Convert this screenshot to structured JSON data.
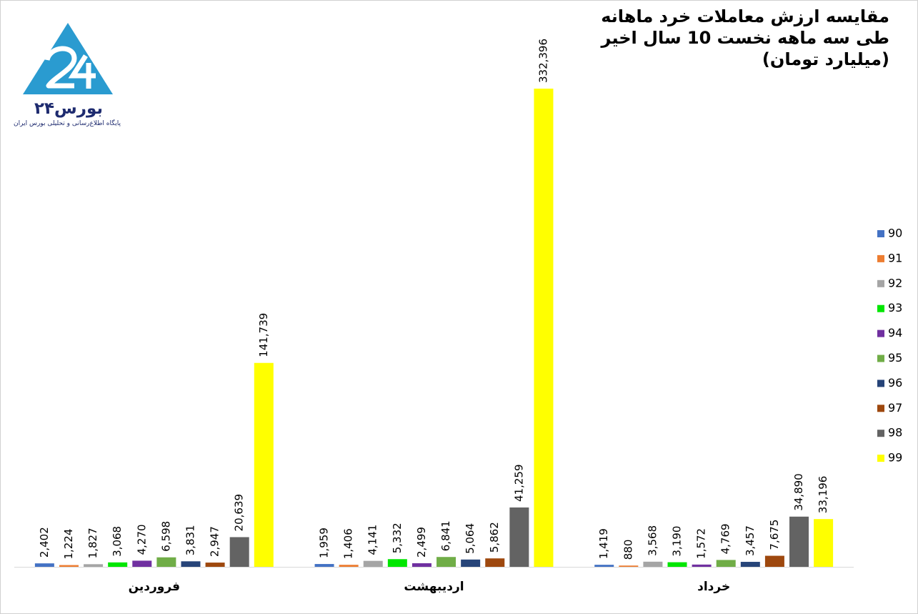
{
  "title": [
    "مقایسه ارزش معاملات خرد ماهانه",
    "طی سه ماهه نخست 10 سال اخیر",
    "(میلیارد تومان)"
  ],
  "logo": {
    "brand": "بورس۲۴",
    "tagline": "پایگاه اطلاع‌رسانی و تحلیلی بورس ایران"
  },
  "chart_data": {
    "type": "bar",
    "categories": [
      "فروردین",
      "اردیبهشت",
      "خرداد"
    ],
    "series": [
      {
        "name": "90",
        "color": "#4472C4",
        "values": [
          2402,
          1959,
          1419
        ],
        "labels": [
          "2,402",
          "1,959",
          "1,419"
        ]
      },
      {
        "name": "91",
        "color": "#ED7D31",
        "values": [
          1224,
          1406,
          880
        ],
        "labels": [
          "1,224",
          "1,406",
          "880"
        ]
      },
      {
        "name": "92",
        "color": "#A5A5A5",
        "values": [
          1827,
          4141,
          3568
        ],
        "labels": [
          "1,827",
          "4,141",
          "3,568"
        ]
      },
      {
        "name": "93",
        "color": "#00E600",
        "values": [
          3068,
          5332,
          3190
        ],
        "labels": [
          "3,068",
          "5,332",
          "3,190"
        ]
      },
      {
        "name": "94",
        "color": "#7030A0",
        "values": [
          4270,
          2499,
          1572
        ],
        "labels": [
          "4,270",
          "2,499",
          "1,572"
        ]
      },
      {
        "name": "95",
        "color": "#70AD47",
        "values": [
          6598,
          6841,
          4769
        ],
        "labels": [
          "6,598",
          "6,841",
          "4,769"
        ]
      },
      {
        "name": "96",
        "color": "#264478",
        "values": [
          3831,
          5064,
          3457
        ],
        "labels": [
          "3,831",
          "5,064",
          "3,457"
        ]
      },
      {
        "name": "97",
        "color": "#9E480E",
        "values": [
          2947,
          5862,
          7675
        ],
        "labels": [
          "2,947",
          "5,862",
          "7,675"
        ]
      },
      {
        "name": "98",
        "color": "#636363",
        "values": [
          20639,
          41259,
          34890
        ],
        "labels": [
          "20,639",
          "41,259",
          "34,890"
        ]
      },
      {
        "name": "99",
        "color": "#FFFF00",
        "values": [
          141739,
          332396,
          33196
        ],
        "labels": [
          "141,739",
          "332,396",
          "33,196"
        ]
      }
    ],
    "ylim": [
      0,
      332396
    ],
    "grid": false,
    "legend": "right"
  }
}
